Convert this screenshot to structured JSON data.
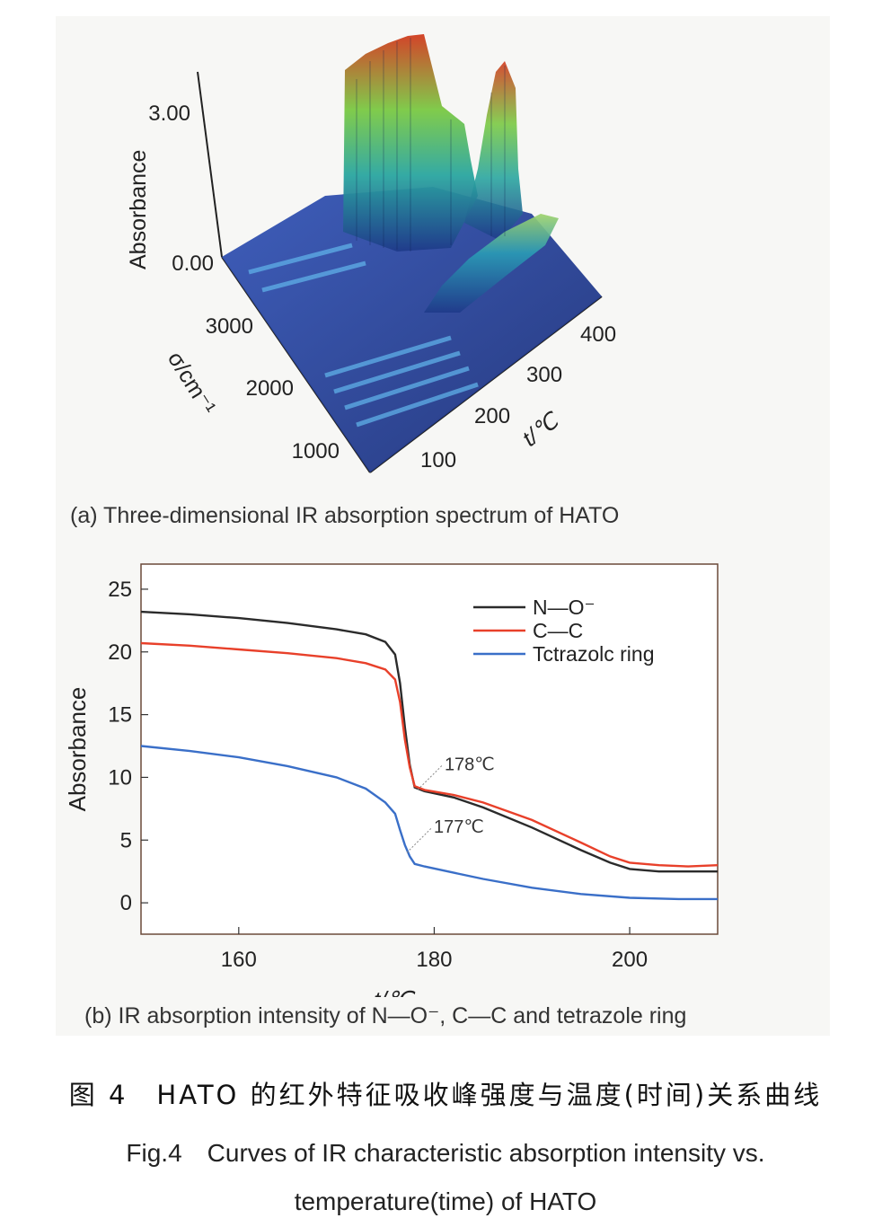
{
  "figure_a": {
    "caption": "(a) Three-dimensional IR absorption spectrum of HATO",
    "z_label": "Absorbance",
    "z_ticks": [
      "3.00",
      "0.00"
    ],
    "sigma_label": "σ/cm⁻¹",
    "sigma_ticks": [
      "3000",
      "2000",
      "1000"
    ],
    "t_label": "t/℃",
    "t_ticks": [
      "400",
      "300",
      "200",
      "100"
    ],
    "colors": {
      "low": "#1f3a8a",
      "mid": "#2aa6a0",
      "high_green": "#7ac943",
      "peak": "#d23a1e"
    }
  },
  "chart_data": {
    "type": "line",
    "caption": "(b) IR absorption intensity of N—O⁻, C—C and tetrazole ring",
    "xlabel": "t/℃",
    "ylabel": "Absorbance",
    "xlim": [
      150,
      209
    ],
    "ylim": [
      -2.5,
      27
    ],
    "xticks": [
      "160",
      "180",
      "200"
    ],
    "xtick_values": [
      160,
      180,
      200
    ],
    "yticks": [
      "25",
      "20",
      "15",
      "10",
      "5",
      "0"
    ],
    "ytick_values": [
      25,
      20,
      15,
      10,
      5,
      0
    ],
    "legend_position": "top-right",
    "series": [
      {
        "name": "N—O⁻",
        "color": "#2b2b2b",
        "x": [
          150,
          155,
          160,
          165,
          170,
          173,
          175,
          176,
          176.5,
          177,
          177.5,
          178,
          179,
          182,
          185,
          190,
          195,
          198,
          200,
          203,
          206,
          209
        ],
        "y": [
          23.2,
          23.0,
          22.7,
          22.3,
          21.8,
          21.4,
          20.8,
          19.8,
          17.5,
          14.0,
          11.0,
          9.2,
          8.9,
          8.4,
          7.6,
          6.0,
          4.2,
          3.2,
          2.7,
          2.5,
          2.5,
          2.5
        ]
      },
      {
        "name": "C—C",
        "color": "#e8402a",
        "x": [
          150,
          155,
          160,
          165,
          170,
          173,
          175,
          176,
          176.5,
          177,
          177.5,
          178,
          179,
          182,
          185,
          190,
          195,
          198,
          200,
          203,
          206,
          209
        ],
        "y": [
          20.7,
          20.5,
          20.2,
          19.9,
          19.5,
          19.1,
          18.6,
          17.8,
          16.0,
          13.0,
          10.8,
          9.3,
          9.0,
          8.6,
          8.0,
          6.6,
          4.8,
          3.7,
          3.2,
          3.0,
          2.9,
          3.0
        ]
      },
      {
        "name": "Tctrazolc ring",
        "color": "#3a6fc8",
        "x": [
          150,
          155,
          160,
          165,
          170,
          173,
          175,
          176,
          176.5,
          177,
          177.5,
          178,
          179,
          182,
          185,
          190,
          195,
          200,
          205,
          209
        ],
        "y": [
          12.5,
          12.1,
          11.6,
          10.9,
          10.0,
          9.1,
          8.0,
          7.1,
          5.8,
          4.6,
          3.7,
          3.1,
          2.9,
          2.4,
          1.9,
          1.2,
          0.7,
          0.4,
          0.3,
          0.3
        ]
      }
    ],
    "annotations": [
      {
        "text": "178℃",
        "x": 178.3,
        "y": 9.0
      },
      {
        "text": "177℃",
        "x": 177.2,
        "y": 4.0
      }
    ]
  },
  "caption_zh": "图 4　HATO 的红外特征吸收峰强度与温度(时间)关系曲线",
  "caption_en": {
    "line1": "Fig.4　Curves of IR characteristic absorption intensity vs.",
    "line2": "temperature(time) of HATO"
  }
}
